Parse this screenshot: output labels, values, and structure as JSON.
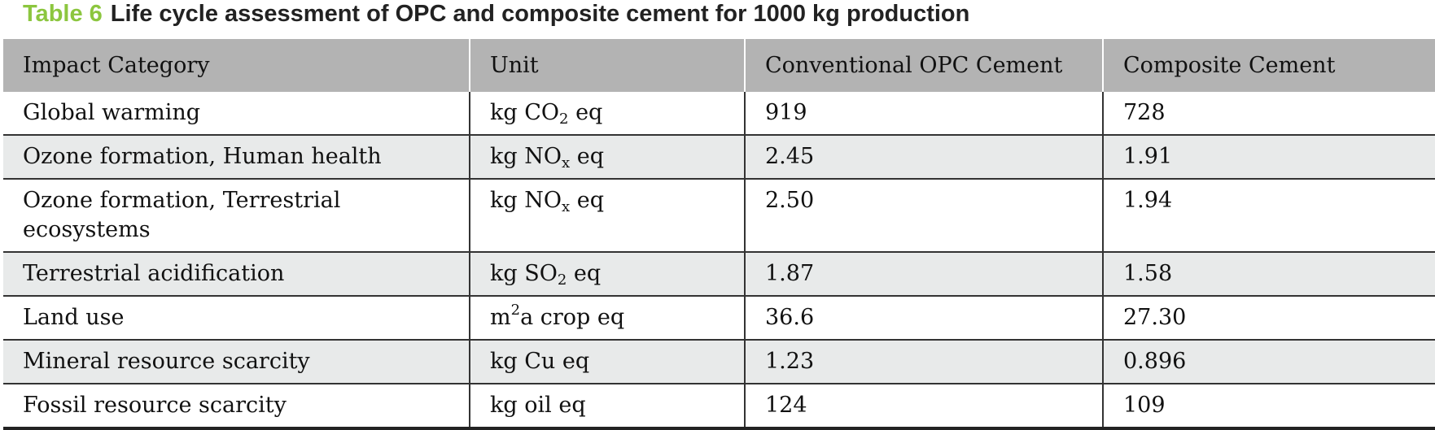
{
  "caption": {
    "label": "Table 6",
    "title": "Life cycle assessment of OPC and composite cement for 1000 kg production"
  },
  "table": {
    "headers": [
      "Impact Category",
      "Unit",
      "Conventional OPC Cement",
      "Composite Cement"
    ],
    "rows": [
      {
        "category": "Global warming",
        "unit": {
          "pre": "kg CO",
          "sub": "2",
          "sup": "",
          "post": " eq"
        },
        "opc": "919",
        "composite": "728"
      },
      {
        "category": "Ozone formation, Human health",
        "unit": {
          "pre": "kg NO",
          "sub": "x",
          "sup": "",
          "post": " eq"
        },
        "opc": "2.45",
        "composite": "1.91"
      },
      {
        "category": "Ozone formation, Terrestrial ecosystems",
        "unit": {
          "pre": "kg NO",
          "sub": "x",
          "sup": "",
          "post": " eq"
        },
        "opc": "2.50",
        "composite": "1.94"
      },
      {
        "category": "Terrestrial acidification",
        "unit": {
          "pre": "kg SO",
          "sub": "2",
          "sup": "",
          "post": " eq"
        },
        "opc": "1.87",
        "composite": "1.58"
      },
      {
        "category": "Land use",
        "unit": {
          "pre": "m",
          "sub": "",
          "sup": "2",
          "post": "a crop eq"
        },
        "opc": "36.6",
        "composite": "27.30"
      },
      {
        "category": "Mineral resource scarcity",
        "unit": {
          "pre": "kg Cu eq",
          "sub": "",
          "sup": "",
          "post": ""
        },
        "opc": "1.23",
        "composite": "0.896"
      },
      {
        "category": "Fossil resource scarcity",
        "unit": {
          "pre": "kg oil eq",
          "sub": "",
          "sup": "",
          "post": ""
        },
        "opc": "124",
        "composite": "109"
      }
    ]
  }
}
